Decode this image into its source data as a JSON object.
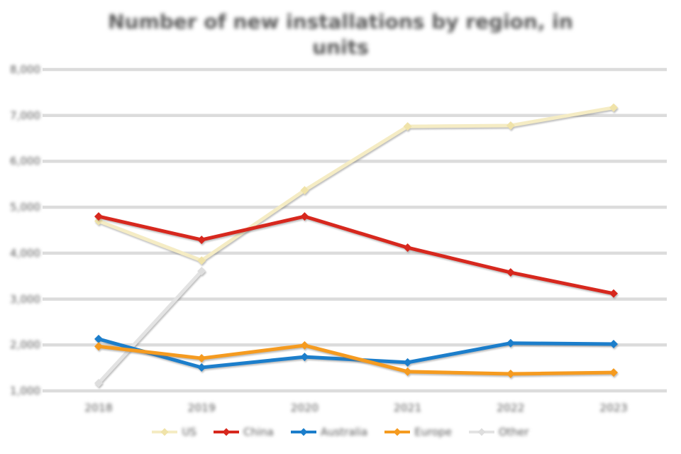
{
  "title": {
    "line1": "Number of new installations by region, in",
    "line2": "units"
  },
  "colors": {
    "text": "#595959",
    "gridline": "#dcdcdc",
    "background": "#ffffff"
  },
  "chart_data": {
    "type": "line",
    "title": "Number of new installations by region, in units",
    "categories": [
      "2018",
      "2019",
      "2020",
      "2021",
      "2022",
      "2023"
    ],
    "series": [
      {
        "name": "US",
        "color": "#f5ecc4",
        "marker_color": "#f0e3a9",
        "values": [
          4700,
          3840,
          5370,
          6760,
          6780,
          7170
        ]
      },
      {
        "name": "China",
        "color": "#d7281e",
        "marker_color": "#d7281e",
        "values": [
          4800,
          4290,
          4800,
          4120,
          3580,
          3120
        ]
      },
      {
        "name": "Australia",
        "color": "#1c7ecb",
        "marker_color": "#1c7ecb",
        "values": [
          2130,
          1510,
          1740,
          1620,
          2040,
          2020
        ]
      },
      {
        "name": "Europe",
        "color": "#f59b20",
        "marker_color": "#f59b20",
        "values": [
          1970,
          1710,
          1990,
          1420,
          1370,
          1400
        ]
      },
      {
        "name": "Other",
        "color": "#e3e3e3",
        "marker_color": "#dedede",
        "values": [
          1170,
          3610,
          null,
          null,
          null,
          null
        ]
      }
    ],
    "ylim": [
      1000,
      8000
    ],
    "ytick_step": 1000,
    "ytick_labels": [
      "1,000",
      "2,000",
      "3,000",
      "4,000",
      "5,000",
      "6,000",
      "7,000",
      "8,000"
    ],
    "xlabel": "",
    "ylabel": "",
    "grid": true,
    "legend_position": "bottom",
    "marker": "diamond",
    "draw_order": [
      "Other",
      "US",
      "China",
      "Australia",
      "Europe"
    ]
  }
}
